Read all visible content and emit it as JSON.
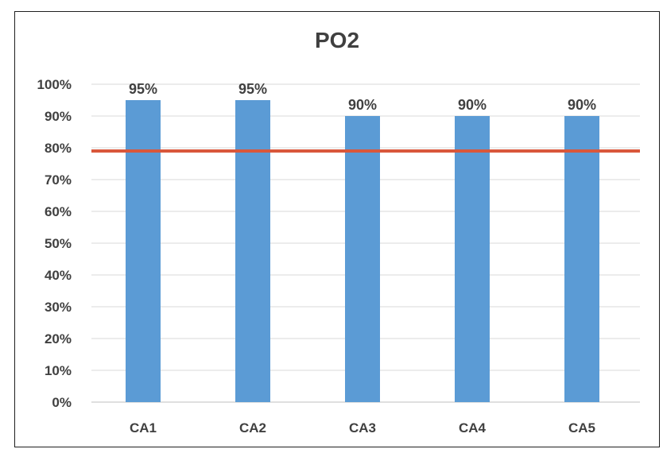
{
  "chart_data": {
    "type": "bar",
    "title": "PO2",
    "categories": [
      "CA1",
      "CA2",
      "CA3",
      "CA4",
      "CA5"
    ],
    "series": [
      {
        "values": [
          95,
          95,
          90,
          90,
          90
        ]
      }
    ],
    "data_labels": [
      "95%",
      "95%",
      "90%",
      "90%",
      "90%"
    ],
    "y_tick_labels": [
      "0%",
      "10%",
      "20%",
      "30%",
      "40%",
      "50%",
      "60%",
      "70%",
      "80%",
      "90%",
      "100%"
    ],
    "ylim": [
      0,
      100
    ],
    "target_line": 79,
    "grid": true,
    "legend": "none",
    "colors": {
      "bar": "#5b9bd5",
      "target_line": "#d9573b",
      "grid": "#d9d9d9",
      "text": "#404040"
    }
  }
}
